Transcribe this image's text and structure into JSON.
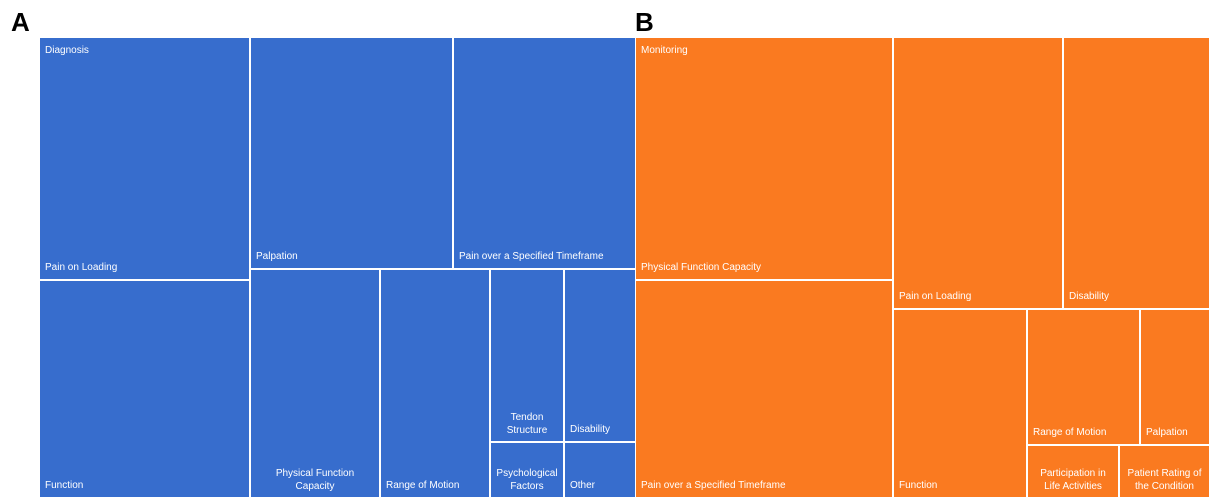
{
  "panels": {
    "a_letter": "A",
    "b_letter": "B"
  },
  "colors": {
    "panel_a": "#376dcd",
    "panel_b": "#fa7a20",
    "border": "#ffffff"
  },
  "chart_data": [
    {
      "type": "treemap",
      "panel": "A",
      "title": "Diagnosis",
      "cells": [
        {
          "label": "Pain on Loading"
        },
        {
          "label": "Function"
        },
        {
          "label": "Palpation"
        },
        {
          "label": "Pain over a Specified Timeframe"
        },
        {
          "label": "Physical Function\nCapacity"
        },
        {
          "label": "Range of Motion"
        },
        {
          "label": "Tendon\nStructure"
        },
        {
          "label": "Disability"
        },
        {
          "label": "Psychological\nFactors"
        },
        {
          "label": "Other"
        }
      ]
    },
    {
      "type": "treemap",
      "panel": "B",
      "title": "Monitoring",
      "cells": [
        {
          "label": "Physical Function Capacity"
        },
        {
          "label": "Pain over a Specified Timeframe"
        },
        {
          "label": "Pain on Loading"
        },
        {
          "label": "Disability"
        },
        {
          "label": "Function"
        },
        {
          "label": "Range of Motion"
        },
        {
          "label": "Palpation"
        },
        {
          "label": "Participation in\nLife Activities"
        },
        {
          "label": "Patient Rating of\nthe Condition"
        }
      ]
    }
  ]
}
